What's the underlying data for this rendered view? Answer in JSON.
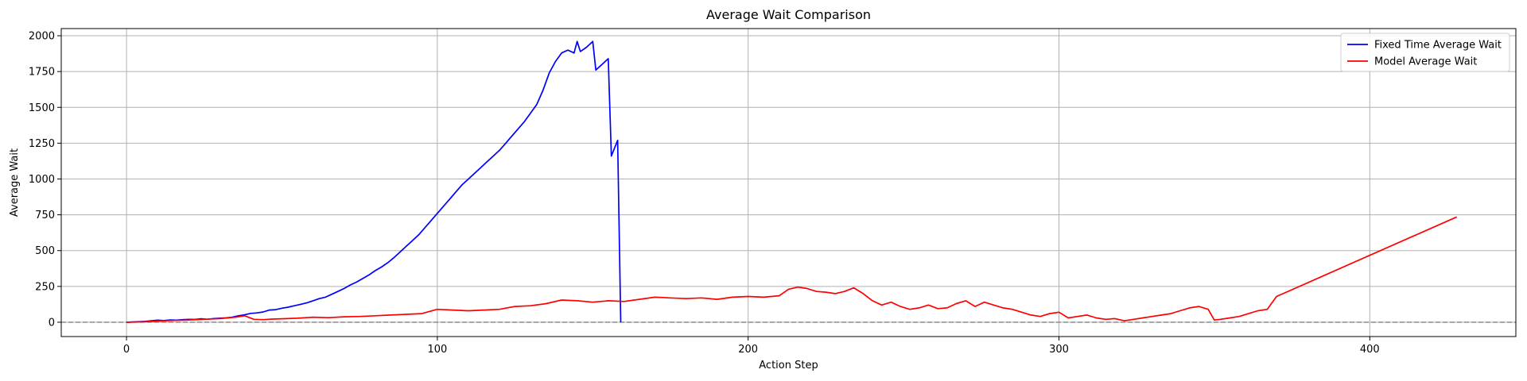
{
  "chart_data": {
    "type": "line",
    "title": "Average Wait Comparison",
    "xlabel": "Action Step",
    "ylabel": "Average Wait",
    "xlim": [
      -21,
      447
    ],
    "ylim": [
      -100,
      2050
    ],
    "xticks": [
      0,
      100,
      200,
      300,
      400
    ],
    "yticks": [
      0,
      250,
      500,
      750,
      1000,
      1250,
      1500,
      1750,
      2000
    ],
    "grid": true,
    "legend_position": "top-right",
    "reference_line": {
      "y": 0,
      "style": "dashed",
      "color": "#808080"
    },
    "series": [
      {
        "name": "Fixed Time Average Wait",
        "color": "#0000ff",
        "x": [
          0,
          2,
          4,
          6,
          8,
          10,
          12,
          14,
          16,
          18,
          20,
          22,
          24,
          26,
          28,
          30,
          32,
          34,
          36,
          38,
          40,
          42,
          44,
          46,
          48,
          50,
          52,
          54,
          56,
          58,
          60,
          62,
          64,
          66,
          68,
          70,
          72,
          74,
          76,
          78,
          80,
          82,
          84,
          86,
          88,
          90,
          92,
          94,
          96,
          98,
          100,
          102,
          104,
          106,
          108,
          110,
          112,
          114,
          116,
          118,
          120,
          122,
          124,
          126,
          128,
          130,
          132,
          134,
          136,
          138,
          140,
          142,
          144,
          145,
          146,
          148,
          150,
          151,
          153,
          155,
          156,
          158,
          159
        ],
        "y": [
          0,
          2,
          4,
          6,
          10,
          14,
          12,
          16,
          14,
          18,
          20,
          19,
          24,
          21,
          26,
          28,
          30,
          35,
          45,
          52,
          62,
          65,
          72,
          85,
          88,
          98,
          105,
          115,
          125,
          135,
          150,
          165,
          175,
          195,
          215,
          235,
          260,
          280,
          305,
          330,
          360,
          385,
          415,
          450,
          490,
          530,
          570,
          610,
          660,
          710,
          760,
          810,
          860,
          910,
          960,
          1000,
          1040,
          1080,
          1120,
          1160,
          1200,
          1250,
          1300,
          1350,
          1400,
          1460,
          1520,
          1620,
          1740,
          1820,
          1880,
          1900,
          1880,
          1960,
          1890,
          1920,
          1960,
          1760,
          1800,
          1840,
          1160,
          1270,
          0
        ]
      },
      {
        "name": "Model Average Wait",
        "color": "#ff0000",
        "x": [
          0,
          5,
          10,
          15,
          20,
          25,
          30,
          35,
          38,
          41,
          44,
          47,
          50,
          55,
          60,
          65,
          70,
          75,
          80,
          85,
          90,
          95,
          100,
          105,
          110,
          115,
          120,
          125,
          130,
          135,
          140,
          145,
          150,
          155,
          160,
          165,
          170,
          175,
          180,
          185,
          190,
          195,
          200,
          205,
          210,
          213,
          216,
          219,
          222,
          225,
          228,
          231,
          234,
          237,
          240,
          243,
          246,
          249,
          252,
          255,
          258,
          261,
          264,
          267,
          270,
          273,
          276,
          279,
          282,
          285,
          288,
          291,
          294,
          297,
          300,
          303,
          306,
          309,
          312,
          315,
          318,
          321,
          324,
          327,
          330,
          333,
          336,
          339,
          342,
          345,
          348,
          350,
          352,
          355,
          358,
          361,
          364,
          367,
          370,
          428
        ],
        "y": [
          0,
          3,
          8,
          12,
          15,
          20,
          25,
          35,
          45,
          20,
          18,
          22,
          24,
          28,
          35,
          32,
          38,
          40,
          45,
          50,
          55,
          60,
          90,
          85,
          80,
          85,
          90,
          110,
          115,
          130,
          155,
          150,
          140,
          150,
          145,
          160,
          175,
          170,
          165,
          170,
          160,
          175,
          180,
          175,
          185,
          230,
          245,
          235,
          215,
          210,
          200,
          215,
          240,
          200,
          150,
          120,
          140,
          110,
          90,
          100,
          120,
          95,
          100,
          130,
          150,
          110,
          140,
          120,
          100,
          90,
          70,
          50,
          40,
          60,
          70,
          30,
          40,
          50,
          30,
          20,
          25,
          10,
          20,
          30,
          40,
          50,
          60,
          80,
          100,
          110,
          90,
          15,
          20,
          30,
          40,
          60,
          80,
          90,
          180,
          735
        ]
      }
    ]
  }
}
